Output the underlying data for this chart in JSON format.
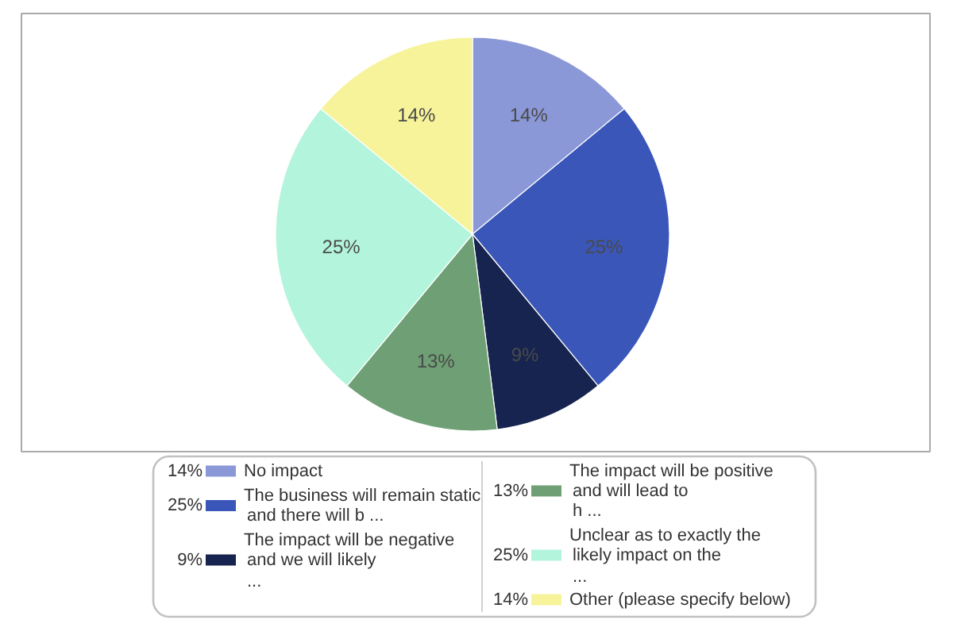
{
  "chart_data": {
    "type": "pie",
    "categories": [
      "No impact",
      "The business will remain static\nand there will b ...",
      "The impact will be negative\nand we will likely\n...",
      "The impact will be positive\nand will lead to\nh ...",
      "Unclear as to exactly the\nlikely impact on the\n...",
      "Other (please specify below)"
    ],
    "values": [
      14,
      25,
      9,
      13,
      25,
      14
    ],
    "colors": [
      "#8b98d8",
      "#3a56b8",
      "#16244f",
      "#6f9f74",
      "#b3f4dc",
      "#f7f39a"
    ],
    "value_labels": [
      "14%",
      "25%",
      "9%",
      "13%",
      "25%",
      "14%"
    ],
    "legend": "bottom"
  }
}
